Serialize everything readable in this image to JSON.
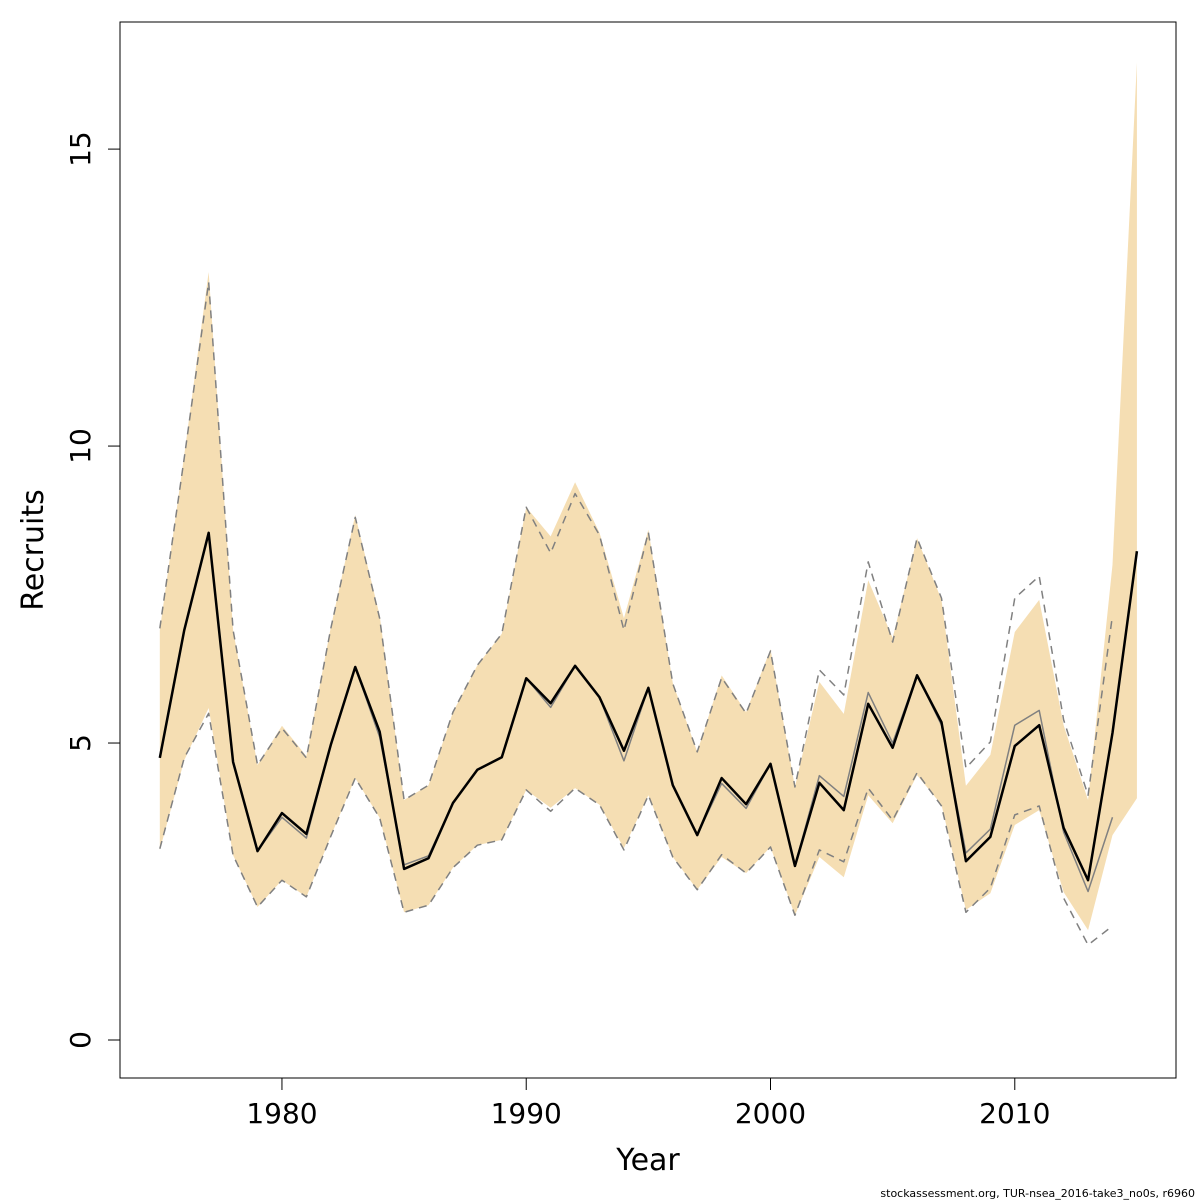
{
  "chart_data": {
    "type": "line",
    "xlabel": "Year",
    "ylabel": "Recruits",
    "footer": "stockassessment.org, TUR-nsea_2016-take3_no0s, r6960",
    "x": [
      1975,
      1976,
      1977,
      1978,
      1979,
      1980,
      1981,
      1982,
      1983,
      1984,
      1985,
      1986,
      1987,
      1988,
      1989,
      1990,
      1991,
      1992,
      1993,
      1994,
      1995,
      1996,
      1997,
      1998,
      1999,
      2000,
      2001,
      2002,
      2003,
      2004,
      2005,
      2006,
      2007,
      2008,
      2009,
      2010,
      2011,
      2012,
      2013,
      2014,
      2015
    ],
    "xlim": [
      1973.37,
      2016.6
    ],
    "xticks": [
      1980,
      1990,
      2000,
      2010
    ],
    "ylim": [
      -0.64,
      17.14
    ],
    "yticks": [
      0,
      5,
      10,
      15
    ],
    "band": {
      "color": "#f5deb3",
      "lower": [
        3.2,
        4.71,
        5.59,
        3.11,
        2.24,
        2.69,
        2.41,
        3.43,
        4.41,
        3.74,
        2.15,
        2.27,
        2.9,
        3.28,
        3.37,
        4.21,
        3.91,
        4.24,
        3.96,
        3.23,
        4.12,
        3.08,
        2.53,
        3.08,
        2.81,
        3.25,
        2.1,
        3.08,
        2.74,
        4.12,
        3.65,
        4.46,
        3.96,
        2.19,
        2.47,
        3.62,
        3.87,
        2.49,
        1.85,
        3.45,
        4.07
      ],
      "upper": [
        6.9,
        9.85,
        12.93,
        6.9,
        4.63,
        5.29,
        4.78,
        6.95,
        8.84,
        7.15,
        4.04,
        4.29,
        5.52,
        6.31,
        6.84,
        8.97,
        8.48,
        9.39,
        8.54,
        7.1,
        8.59,
        6.01,
        4.85,
        6.14,
        5.52,
        6.58,
        4.26,
        6.03,
        5.49,
        7.74,
        6.77,
        8.45,
        7.41,
        4.28,
        4.8,
        6.87,
        7.41,
        5.3,
        4.04,
        8.0,
        16.46
      ]
    },
    "series": [
      {
        "color": "#808080",
        "width": 1.5,
        "dashed": true,
        "values": [
          6.93,
          9.8,
          12.76,
          6.9,
          4.63,
          5.25,
          4.75,
          6.93,
          8.8,
          7.1,
          4.04,
          4.29,
          5.52,
          6.31,
          6.84,
          8.97,
          8.2,
          9.2,
          8.5,
          6.9,
          8.55,
          6.0,
          4.85,
          6.1,
          5.5,
          6.55,
          4.26,
          6.23,
          5.81,
          8.05,
          6.7,
          8.45,
          7.44,
          4.58,
          5.02,
          7.44,
          7.81,
          5.39,
          4.12,
          7.15,
          null
        ]
      },
      {
        "color": "#808080",
        "width": 1.5,
        "dashed": true,
        "values": [
          3.22,
          4.75,
          5.5,
          3.11,
          2.24,
          2.69,
          2.41,
          3.43,
          4.41,
          3.74,
          2.15,
          2.27,
          2.9,
          3.28,
          3.37,
          4.21,
          3.85,
          4.24,
          3.96,
          3.2,
          4.12,
          3.08,
          2.53,
          3.12,
          2.81,
          3.25,
          2.1,
          3.2,
          3.0,
          4.24,
          3.7,
          4.5,
          3.94,
          2.15,
          2.56,
          3.79,
          3.94,
          2.39,
          1.6,
          1.92,
          null
        ]
      },
      {
        "color": "#808080",
        "width": 1.5,
        "dashed": false,
        "values": [
          4.75,
          6.9,
          8.54,
          4.68,
          3.18,
          3.75,
          3.4,
          4.97,
          6.28,
          5.1,
          2.95,
          3.1,
          3.99,
          4.55,
          4.76,
          6.09,
          5.6,
          6.3,
          5.77,
          4.7,
          5.93,
          4.29,
          3.45,
          4.32,
          3.9,
          4.65,
          2.93,
          4.45,
          4.1,
          5.85,
          5.0,
          6.15,
          5.3,
          3.15,
          3.55,
          5.3,
          5.55,
          3.5,
          2.5,
          3.75,
          null
        ]
      },
      {
        "color": "#000000",
        "width": 2.5,
        "dashed": false,
        "values": [
          4.75,
          6.9,
          8.54,
          4.68,
          3.18,
          3.82,
          3.47,
          4.97,
          6.28,
          5.19,
          2.88,
          3.06,
          3.99,
          4.55,
          4.76,
          6.09,
          5.67,
          6.3,
          5.77,
          4.87,
          5.93,
          4.29,
          3.45,
          4.41,
          3.97,
          4.65,
          2.93,
          4.33,
          3.87,
          5.66,
          4.92,
          6.14,
          5.35,
          3.01,
          3.42,
          4.95,
          5.3,
          3.57,
          2.69,
          5.17,
          8.23
        ]
      }
    ]
  }
}
